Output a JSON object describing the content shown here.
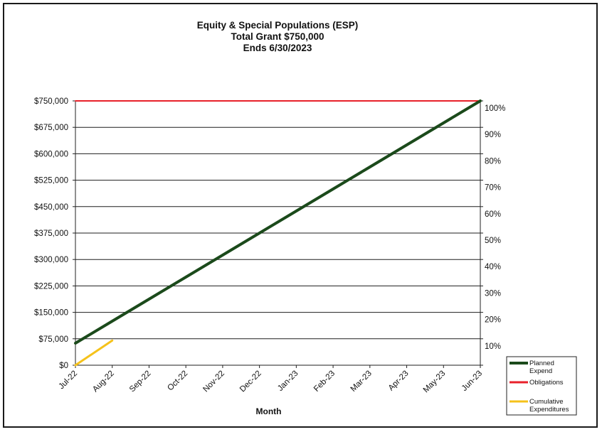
{
  "chart_data": {
    "type": "line",
    "title": "Equity & Special Populations (ESP)",
    "subtitle_lines": [
      "Total Grant  $750,000",
      "Ends 6/30/2023"
    ],
    "xlabel": "Month",
    "ylabel": "",
    "categories": [
      "Jul-22",
      "Aug-22",
      "Sep-22",
      "Oct-22",
      "Nov-22",
      "Dec-22",
      "Jan-23",
      "Feb-23",
      "Mar-23",
      "Apr-23",
      "May-23",
      "Jun-23"
    ],
    "ylim": [
      0,
      750000
    ],
    "y_ticks": [
      "$0",
      "$75,000",
      "$150,000",
      "$225,000",
      "$300,000",
      "$375,000",
      "$450,000",
      "$525,000",
      "$600,000",
      "$675,000",
      "$750,000"
    ],
    "y2_ticks": [
      "10%",
      "20%",
      "30%",
      "40%",
      "50%",
      "60%",
      "70%",
      "80%",
      "90%",
      "100%"
    ],
    "grid": true,
    "legend_position": "bottom-right",
    "series": [
      {
        "name": "Planned Expend",
        "color": "#1b4a1b",
        "values": [
          62500,
          125000,
          187500,
          250000,
          312500,
          375000,
          437500,
          500000,
          562500,
          625000,
          687500,
          750000
        ]
      },
      {
        "name": "Obligations",
        "color": "#e8202a",
        "values": [
          750000,
          750000,
          750000,
          750000,
          750000,
          750000,
          750000,
          750000,
          750000,
          750000,
          750000,
          750000
        ]
      },
      {
        "name": "Cumulative Expenditures",
        "color": "#f5c21b",
        "values": [
          0,
          70000,
          null,
          null,
          null,
          null,
          null,
          null,
          null,
          null,
          null,
          null
        ]
      }
    ]
  }
}
